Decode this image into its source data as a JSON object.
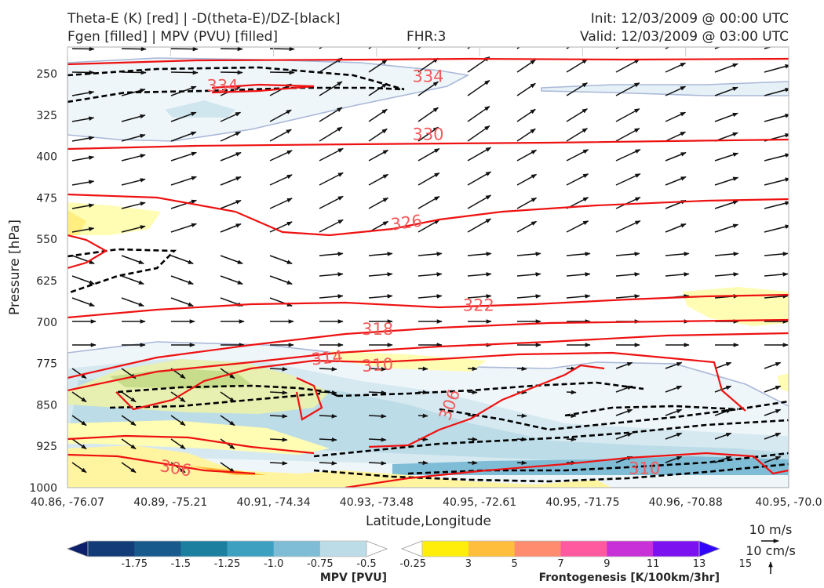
{
  "header": {
    "line1_left": "Theta-E (K) [red] | -D(theta-E)/DZ-[black]",
    "line2_left": "Fgen [filled] | MPV (PVU) [filled]",
    "fhr": "FHR:3",
    "init": "Init: 12/03/2009 @ 00:00 UTC",
    "valid": "Valid: 12/03/2009 @ 03:00 UTC"
  },
  "chart_data": {
    "type": "cross-section",
    "xlabel": "Latitude,Longitude",
    "ylabel": "Pressure [hPa]",
    "x_ticks": [
      "40.86, -76.07",
      "40.89, -75.21",
      "40.91, -74.34",
      "40.93, -73.48",
      "40.95, -72.61",
      "40.95, -71.75",
      "40.96, -70.88",
      "40.95, -70.0"
    ],
    "y_ticks": [
      250,
      325,
      400,
      475,
      550,
      625,
      700,
      775,
      850,
      925,
      1000
    ],
    "ylim": [
      1000,
      250
    ],
    "y_axis_inverted": true,
    "theta_e_contours": [
      {
        "label": "334",
        "values_x_by_p": [
          [
            0.0,
            262
          ],
          [
            0.5,
            255
          ],
          [
            1.0,
            250
          ]
        ]
      },
      {
        "label": "334",
        "values_x_by_p": [
          [
            0.18,
            272
          ],
          [
            0.26,
            275
          ]
        ]
      },
      {
        "label": "330",
        "values_x_by_p": [
          [
            0.0,
            365
          ],
          [
            0.5,
            360
          ],
          [
            1.0,
            355
          ]
        ]
      },
      {
        "label": "326",
        "values_x_by_p": [
          [
            0.0,
            470
          ],
          [
            0.35,
            512
          ],
          [
            0.47,
            520
          ],
          [
            1.0,
            480
          ]
        ]
      },
      {
        "label": "322",
        "values_x_by_p": [
          [
            0.0,
            680
          ],
          [
            0.3,
            658
          ],
          [
            0.57,
            670
          ],
          [
            1.0,
            662
          ]
        ]
      },
      {
        "label": "318",
        "values_x_by_p": [
          [
            0.0,
            810
          ],
          [
            0.3,
            730
          ],
          [
            0.43,
            713
          ],
          [
            1.0,
            690
          ]
        ]
      },
      {
        "label": "314",
        "values_x_by_p": [
          [
            0.0,
            835
          ],
          [
            0.3,
            765
          ],
          [
            1.0,
            725
          ]
        ]
      },
      {
        "label": "310",
        "values_x_by_p": [
          [
            0.15,
            835
          ],
          [
            0.43,
            778
          ],
          [
            0.9,
            755
          ]
        ]
      },
      {
        "label": "306",
        "values_x_by_p": [
          [
            0.42,
            940
          ],
          [
            0.53,
            850
          ],
          [
            0.65,
            790
          ]
        ]
      },
      {
        "label": "306",
        "values_x_by_p": [
          [
            0.0,
            965
          ],
          [
            0.13,
            965
          ],
          [
            0.26,
            985
          ]
        ]
      },
      {
        "label": "310",
        "values_x_by_p": [
          [
            0.43,
            1000
          ],
          [
            0.8,
            965
          ],
          [
            1.0,
            940
          ]
        ]
      }
    ],
    "colorbar_mpv": {
      "label": "MPV [PVU]",
      "ticks": [
        -1.75,
        -1.5,
        -1.25,
        -1.0,
        -0.75,
        -0.5,
        -0.25
      ],
      "tick_labels": [
        "-1.75",
        "-1.5",
        "-1.25",
        "-1.0",
        "-0.75",
        "-0.5",
        "-0.25"
      ],
      "colors": [
        "#0c1f6b",
        "#123b78",
        "#195a8c",
        "#1c7fa0",
        "#3da0c0",
        "#7fbcd6",
        "#bcdce7",
        "#ffffff"
      ]
    },
    "colorbar_fgen": {
      "label": "Frontogenesis [K/100km/3hr]",
      "ticks": [
        3,
        5,
        7,
        9,
        11,
        13,
        15
      ],
      "tick_labels": [
        "3",
        "5",
        "7",
        "9",
        "11",
        "13",
        "15"
      ],
      "colors": [
        "#ffffff",
        "#ffee0a",
        "#ffbe3c",
        "#ff8c6e",
        "#ff5aa0",
        "#c830d8",
        "#7d12f0",
        "#3205ff"
      ]
    },
    "reference_vectors": {
      "horizontal_label": "10 m/s",
      "vertical_label": "10 cm/s"
    }
  }
}
